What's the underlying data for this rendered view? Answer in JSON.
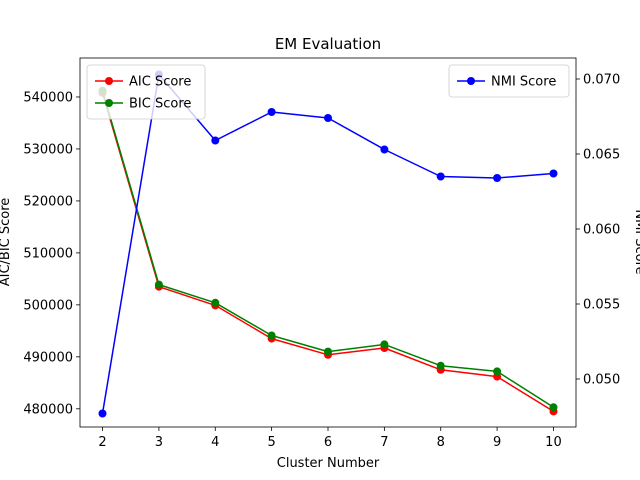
{
  "chart_data": {
    "type": "line",
    "title": "EM Evaluation",
    "xlabel": "Cluster Number",
    "ylabel_left": "AIC/BIC Score",
    "ylabel_right": "NMI Score",
    "x": [
      2,
      3,
      4,
      5,
      6,
      7,
      8,
      9,
      10
    ],
    "x_ticks": [
      "2",
      "3",
      "4",
      "5",
      "6",
      "7",
      "8",
      "9",
      "10"
    ],
    "xlim": [
      1.6,
      10.4
    ],
    "ylim_left": [
      476500,
      547500
    ],
    "ylim_right": [
      0.0468,
      0.0714
    ],
    "yticks_left": [
      480000,
      490000,
      500000,
      510000,
      520000,
      530000,
      540000
    ],
    "yticks_left_labels": [
      "480000",
      "490000",
      "500000",
      "510000",
      "520000",
      "530000",
      "540000"
    ],
    "yticks_right": [
      0.05,
      0.055,
      0.06,
      0.065,
      0.07
    ],
    "yticks_right_labels": [
      "0.050",
      "0.055",
      "0.060",
      "0.065",
      "0.070"
    ],
    "series_left": [
      {
        "name": "AIC Score",
        "color": "#ff0000",
        "values": [
          540800,
          503500,
          499900,
          493500,
          490400,
          491700,
          487500,
          486200,
          479500
        ]
      },
      {
        "name": "BIC Score",
        "color": "#008000",
        "values": [
          541200,
          503900,
          500400,
          494100,
          491000,
          492400,
          488300,
          487200,
          480300
        ]
      }
    ],
    "series_right": [
      {
        "name": "NMI Score",
        "color": "#0000ff",
        "values": [
          0.0477,
          0.0703,
          0.0659,
          0.0678,
          0.0674,
          0.0653,
          0.0635,
          0.0634,
          0.0637
        ]
      }
    ],
    "legend_left_placement": "top-left",
    "legend_right_placement": "top-right",
    "grid": false
  }
}
